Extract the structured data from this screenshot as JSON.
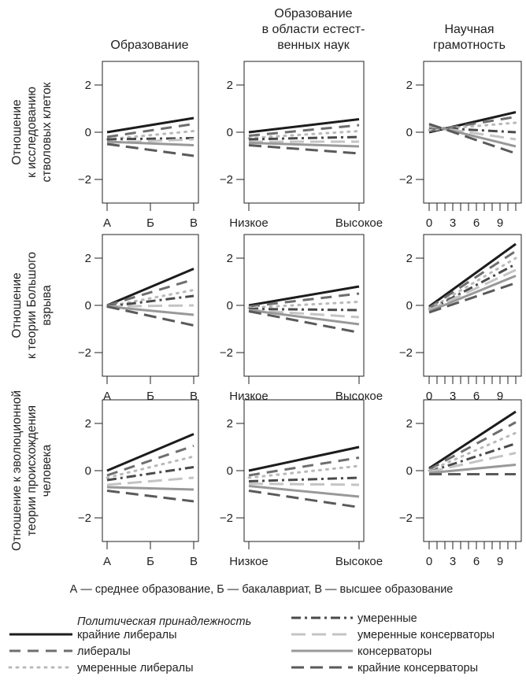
{
  "styles": {
    "extreme_lib": {
      "color": "#1c1c1c",
      "dash": "",
      "width": 3
    },
    "lib": {
      "color": "#6e6e6e",
      "dash": "14 9",
      "width": 3
    },
    "mod_lib": {
      "color": "#b9b9b9",
      "dash": "2 7",
      "width": 3
    },
    "moderate": {
      "color": "#4a4a4a",
      "dash": "12 5 3 5",
      "width": 3
    },
    "mod_cons": {
      "color": "#c4c4c4",
      "dash": "18 8",
      "width": 3
    },
    "cons": {
      "color": "#999999",
      "dash": "",
      "width": 3
    },
    "extreme_cons": {
      "color": "#5a5a5a",
      "dash": "16 8",
      "width": 3
    }
  },
  "columns": [
    "Образование",
    "Образование\nв области естест-\nвенных наук",
    "Научная\nграмотность"
  ],
  "rows": [
    "Отношение\nк исследованию\nстволовых клеток",
    "Отношение\nк теории Большого\nвзрыва",
    "Отношение к эволюционной\nтеории происхождения\nчеловека"
  ],
  "chart_data": [
    {
      "type": "line",
      "row": 0,
      "col": 0,
      "xlim": [
        0,
        2
      ],
      "ylim": [
        -2,
        2
      ],
      "x_ticks": [
        0,
        1,
        2
      ],
      "x_tick_labels": [
        "А",
        "Б",
        "В"
      ],
      "y_ticks": [
        -2,
        0,
        2
      ],
      "y_tick_labels": [
        "−2",
        "0",
        "2"
      ],
      "series": [
        {
          "style": "extreme_lib",
          "x": [
            0,
            2
          ],
          "y": [
            0.0,
            0.6
          ]
        },
        {
          "style": "lib",
          "x": [
            0,
            2
          ],
          "y": [
            -0.2,
            0.35
          ]
        },
        {
          "style": "mod_lib",
          "x": [
            0,
            2
          ],
          "y": [
            -0.3,
            0.05
          ]
        },
        {
          "style": "moderate",
          "x": [
            0,
            2
          ],
          "y": [
            -0.3,
            -0.25
          ]
        },
        {
          "style": "mod_cons",
          "x": [
            0,
            2
          ],
          "y": [
            -0.45,
            -0.3
          ]
        },
        {
          "style": "cons",
          "x": [
            0,
            2
          ],
          "y": [
            -0.4,
            -0.55
          ]
        },
        {
          "style": "extreme_cons",
          "x": [
            0,
            2
          ],
          "y": [
            -0.5,
            -1.0
          ]
        }
      ]
    },
    {
      "type": "line",
      "row": 0,
      "col": 1,
      "xlim": [
        0,
        1
      ],
      "ylim": [
        -2,
        2
      ],
      "x_ticks": [
        0,
        1
      ],
      "x_tick_labels": [
        "Низкое",
        "Высокое"
      ],
      "y_ticks": [
        -2,
        0,
        2
      ],
      "y_tick_labels": [
        "−2",
        "0",
        "2"
      ],
      "series": [
        {
          "style": "extreme_lib",
          "x": [
            0,
            1
          ],
          "y": [
            0.0,
            0.55
          ]
        },
        {
          "style": "lib",
          "x": [
            0,
            1
          ],
          "y": [
            -0.15,
            0.3
          ]
        },
        {
          "style": "mod_lib",
          "x": [
            0,
            1
          ],
          "y": [
            -0.25,
            0.05
          ]
        },
        {
          "style": "moderate",
          "x": [
            0,
            1
          ],
          "y": [
            -0.3,
            -0.2
          ]
        },
        {
          "style": "mod_cons",
          "x": [
            0,
            1
          ],
          "y": [
            -0.4,
            -0.4
          ]
        },
        {
          "style": "cons",
          "x": [
            0,
            1
          ],
          "y": [
            -0.45,
            -0.6
          ]
        },
        {
          "style": "extreme_cons",
          "x": [
            0,
            1
          ],
          "y": [
            -0.55,
            -0.9
          ]
        }
      ]
    },
    {
      "type": "line",
      "row": 0,
      "col": 2,
      "xlim": [
        0,
        11
      ],
      "ylim": [
        -2,
        2
      ],
      "x_ticks": [
        0,
        1,
        2,
        3,
        4,
        5,
        6,
        7,
        8,
        9,
        10,
        11
      ],
      "x_tick_labels": [
        "0",
        "",
        "",
        "3",
        "",
        "",
        "6",
        "",
        "",
        "9",
        "",
        ""
      ],
      "y_ticks": [
        -2,
        0,
        2
      ],
      "y_tick_labels": [
        "−2",
        "0",
        "2"
      ],
      "series": [
        {
          "style": "extreme_lib",
          "x": [
            0,
            11
          ],
          "y": [
            0.0,
            0.85
          ]
        },
        {
          "style": "lib",
          "x": [
            0,
            11
          ],
          "y": [
            0.05,
            0.65
          ]
        },
        {
          "style": "mod_lib",
          "x": [
            0,
            11
          ],
          "y": [
            0.1,
            0.4
          ]
        },
        {
          "style": "moderate",
          "x": [
            0,
            11
          ],
          "y": [
            0.2,
            0.0
          ]
        },
        {
          "style": "mod_cons",
          "x": [
            0,
            11
          ],
          "y": [
            0.25,
            -0.3
          ]
        },
        {
          "style": "cons",
          "x": [
            0,
            11
          ],
          "y": [
            0.3,
            -0.6
          ]
        },
        {
          "style": "extreme_cons",
          "x": [
            0,
            11
          ],
          "y": [
            0.35,
            -0.9
          ]
        }
      ]
    },
    {
      "type": "line",
      "row": 1,
      "col": 0,
      "xlim": [
        0,
        2
      ],
      "ylim": [
        -2,
        2
      ],
      "x_ticks": [
        0,
        1,
        2
      ],
      "x_tick_labels": [
        "А",
        "Б",
        "В"
      ],
      "y_ticks": [
        -2,
        0,
        2
      ],
      "y_tick_labels": [
        "−2",
        "0",
        "2"
      ],
      "series": [
        {
          "style": "extreme_lib",
          "x": [
            0,
            2
          ],
          "y": [
            0.0,
            1.55
          ]
        },
        {
          "style": "lib",
          "x": [
            0,
            2
          ],
          "y": [
            0.0,
            1.1
          ]
        },
        {
          "style": "mod_lib",
          "x": [
            0,
            2
          ],
          "y": [
            -0.05,
            0.65
          ]
        },
        {
          "style": "moderate",
          "x": [
            0,
            2
          ],
          "y": [
            -0.05,
            0.4
          ]
        },
        {
          "style": "mod_cons",
          "x": [
            0,
            2
          ],
          "y": [
            -0.05,
            0.0
          ]
        },
        {
          "style": "cons",
          "x": [
            0,
            2
          ],
          "y": [
            -0.05,
            -0.4
          ]
        },
        {
          "style": "extreme_cons",
          "x": [
            0,
            2
          ],
          "y": [
            -0.05,
            -0.85
          ]
        }
      ]
    },
    {
      "type": "line",
      "row": 1,
      "col": 1,
      "xlim": [
        0,
        1
      ],
      "ylim": [
        -2,
        2
      ],
      "x_ticks": [
        0,
        1
      ],
      "x_tick_labels": [
        "Низкое",
        "Высокое"
      ],
      "y_ticks": [
        -2,
        0,
        2
      ],
      "y_tick_labels": [
        "−2",
        "0",
        "2"
      ],
      "series": [
        {
          "style": "extreme_lib",
          "x": [
            0,
            1
          ],
          "y": [
            0.0,
            0.8
          ]
        },
        {
          "style": "lib",
          "x": [
            0,
            1
          ],
          "y": [
            -0.05,
            0.5
          ]
        },
        {
          "style": "mod_lib",
          "x": [
            0,
            1
          ],
          "y": [
            -0.1,
            0.15
          ]
        },
        {
          "style": "moderate",
          "x": [
            0,
            1
          ],
          "y": [
            -0.15,
            -0.2
          ]
        },
        {
          "style": "mod_cons",
          "x": [
            0,
            1
          ],
          "y": [
            -0.2,
            -0.5
          ]
        },
        {
          "style": "cons",
          "x": [
            0,
            1
          ],
          "y": [
            -0.2,
            -0.8
          ]
        },
        {
          "style": "extreme_cons",
          "x": [
            0,
            1
          ],
          "y": [
            -0.25,
            -1.15
          ]
        }
      ]
    },
    {
      "type": "line",
      "row": 1,
      "col": 2,
      "xlim": [
        0,
        11
      ],
      "ylim": [
        -2,
        2
      ],
      "x_ticks": [
        0,
        1,
        2,
        3,
        4,
        5,
        6,
        7,
        8,
        9,
        10,
        11
      ],
      "x_tick_labels": [
        "0",
        "",
        "",
        "3",
        "",
        "",
        "6",
        "",
        "",
        "9",
        "",
        ""
      ],
      "y_ticks": [
        -2,
        0,
        2
      ],
      "y_tick_labels": [
        "−2",
        "0",
        "2"
      ],
      "series": [
        {
          "style": "extreme_lib",
          "x": [
            0,
            11
          ],
          "y": [
            -0.05,
            2.6
          ]
        },
        {
          "style": "lib",
          "x": [
            0,
            11
          ],
          "y": [
            -0.1,
            2.3
          ]
        },
        {
          "style": "mod_lib",
          "x": [
            0,
            11
          ],
          "y": [
            -0.15,
            2.0
          ]
        },
        {
          "style": "moderate",
          "x": [
            0,
            11
          ],
          "y": [
            -0.2,
            1.75
          ]
        },
        {
          "style": "mod_cons",
          "x": [
            0,
            11
          ],
          "y": [
            -0.2,
            1.5
          ]
        },
        {
          "style": "cons",
          "x": [
            0,
            11
          ],
          "y": [
            -0.25,
            1.25
          ]
        },
        {
          "style": "extreme_cons",
          "x": [
            0,
            11
          ],
          "y": [
            -0.3,
            0.95
          ]
        }
      ]
    },
    {
      "type": "line",
      "row": 2,
      "col": 0,
      "xlim": [
        0,
        2
      ],
      "ylim": [
        -2,
        2
      ],
      "x_ticks": [
        0,
        1,
        2
      ],
      "x_tick_labels": [
        "А",
        "Б",
        "В"
      ],
      "y_ticks": [
        -2,
        0,
        2
      ],
      "y_tick_labels": [
        "−2",
        "0",
        "2"
      ],
      "series": [
        {
          "style": "extreme_lib",
          "x": [
            0,
            2
          ],
          "y": [
            0.0,
            1.55
          ]
        },
        {
          "style": "lib",
          "x": [
            0,
            2
          ],
          "y": [
            -0.2,
            1.05
          ]
        },
        {
          "style": "mod_lib",
          "x": [
            0,
            2
          ],
          "y": [
            -0.3,
            0.6
          ]
        },
        {
          "style": "moderate",
          "x": [
            0,
            2
          ],
          "y": [
            -0.4,
            0.15
          ]
        },
        {
          "style": "mod_cons",
          "x": [
            0,
            2
          ],
          "y": [
            -0.6,
            -0.3
          ]
        },
        {
          "style": "cons",
          "x": [
            0,
            2
          ],
          "y": [
            -0.7,
            -0.8
          ]
        },
        {
          "style": "extreme_cons",
          "x": [
            0,
            2
          ],
          "y": [
            -0.85,
            -1.3
          ]
        }
      ]
    },
    {
      "type": "line",
      "row": 2,
      "col": 1,
      "xlim": [
        0,
        1
      ],
      "ylim": [
        -2,
        2
      ],
      "x_ticks": [
        0,
        1
      ],
      "x_tick_labels": [
        "Низкое",
        "Высокое"
      ],
      "y_ticks": [
        -2,
        0,
        2
      ],
      "y_tick_labels": [
        "−2",
        "0",
        "2"
      ],
      "series": [
        {
          "style": "extreme_lib",
          "x": [
            0,
            1
          ],
          "y": [
            0.0,
            1.0
          ]
        },
        {
          "style": "lib",
          "x": [
            0,
            1
          ],
          "y": [
            -0.2,
            0.55
          ]
        },
        {
          "style": "mod_lib",
          "x": [
            0,
            1
          ],
          "y": [
            -0.3,
            0.2
          ]
        },
        {
          "style": "moderate",
          "x": [
            0,
            1
          ],
          "y": [
            -0.45,
            -0.3
          ]
        },
        {
          "style": "mod_cons",
          "x": [
            0,
            1
          ],
          "y": [
            -0.55,
            -0.6
          ]
        },
        {
          "style": "cons",
          "x": [
            0,
            1
          ],
          "y": [
            -0.65,
            -1.1
          ]
        },
        {
          "style": "extreme_cons",
          "x": [
            0,
            1
          ],
          "y": [
            -0.85,
            -1.55
          ]
        }
      ]
    },
    {
      "type": "line",
      "row": 2,
      "col": 2,
      "xlim": [
        0,
        11
      ],
      "ylim": [
        -2,
        2
      ],
      "x_ticks": [
        0,
        1,
        2,
        3,
        4,
        5,
        6,
        7,
        8,
        9,
        10,
        11
      ],
      "x_tick_labels": [
        "0",
        "",
        "",
        "3",
        "",
        "",
        "6",
        "",
        "",
        "9",
        "",
        ""
      ],
      "y_ticks": [
        -2,
        0,
        2
      ],
      "y_tick_labels": [
        "−2",
        "0",
        "2"
      ],
      "series": [
        {
          "style": "extreme_lib",
          "x": [
            0,
            11
          ],
          "y": [
            0.1,
            2.5
          ]
        },
        {
          "style": "lib",
          "x": [
            0,
            11
          ],
          "y": [
            0.05,
            2.05
          ]
        },
        {
          "style": "mod_lib",
          "x": [
            0,
            11
          ],
          "y": [
            0.0,
            1.6
          ]
        },
        {
          "style": "moderate",
          "x": [
            0,
            11
          ],
          "y": [
            -0.05,
            1.15
          ]
        },
        {
          "style": "mod_cons",
          "x": [
            0,
            11
          ],
          "y": [
            -0.05,
            0.75
          ]
        },
        {
          "style": "cons",
          "x": [
            0,
            11
          ],
          "y": [
            -0.1,
            0.25
          ]
        },
        {
          "style": "extreme_cons",
          "x": [
            0,
            11
          ],
          "y": [
            -0.15,
            -0.15
          ]
        }
      ]
    }
  ],
  "note": "А — среднее образование, Б — бакалавриат, В — высшее образование",
  "legend": {
    "title": "Политическая принадлежность",
    "items": [
      {
        "style": "extreme_lib",
        "label": "крайние либералы"
      },
      {
        "style": "lib",
        "label": "либералы"
      },
      {
        "style": "mod_lib",
        "label": "умеренные либералы"
      },
      {
        "style": "moderate",
        "label": "умеренные"
      },
      {
        "style": "mod_cons",
        "label": "умеренные консерваторы"
      },
      {
        "style": "cons",
        "label": "консерваторы"
      },
      {
        "style": "extreme_cons",
        "label": "крайние консерваторы"
      }
    ]
  }
}
